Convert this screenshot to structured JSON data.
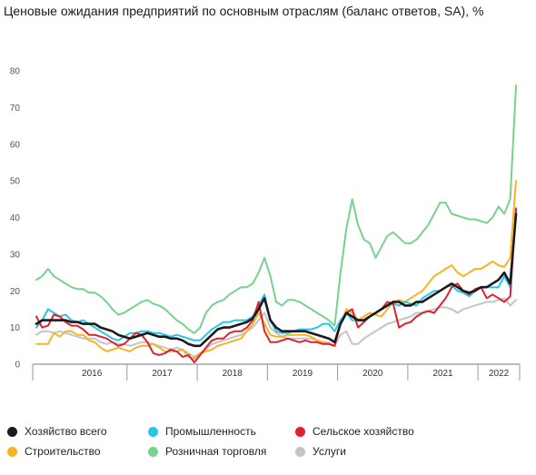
{
  "title": "Ценовые ожидания предприятий по основным отраслям (баланс ответов, SA), %",
  "chart_data": {
    "type": "line",
    "title": "Ценовые ожидания предприятий по основным отраслям (баланс ответов, SA), %",
    "ylim": [
      0,
      80
    ],
    "yticks": [
      0,
      10,
      20,
      30,
      40,
      50,
      60,
      70,
      80
    ],
    "x_start": "2015-09",
    "x_labels": [
      "2016",
      "2017",
      "2018",
      "2019",
      "2020",
      "2021",
      "2022"
    ],
    "x_label_months": [
      "2016-01",
      "2017-01",
      "2018-01",
      "2019-01",
      "2020-01",
      "2021-01",
      "2022-01"
    ],
    "grid": false,
    "legend_position": "bottom",
    "series": [
      {
        "name": "Хозяйство всего",
        "color": "#1b1b1b",
        "values": [
          11.0,
          12.0,
          12.0,
          12.0,
          12.0,
          12.0,
          11.5,
          11.5,
          11.0,
          11.0,
          11.0,
          10.0,
          9.5,
          9.0,
          8.0,
          7.5,
          7.0,
          7.5,
          8.0,
          8.5,
          8.0,
          7.5,
          7.5,
          7.0,
          7.0,
          6.5,
          5.5,
          5.0,
          5.0,
          6.5,
          8.0,
          9.5,
          10.0,
          10.0,
          10.5,
          11.0,
          11.5,
          12.5,
          15.0,
          18.0,
          12.0,
          10.0,
          9.0,
          9.0,
          9.0,
          9.0,
          9.0,
          8.5,
          8.0,
          7.5,
          7.0,
          6.0,
          11.0,
          14.0,
          13.0,
          12.0,
          12.0,
          13.0,
          14.0,
          15.0,
          16.0,
          17.0,
          17.0,
          16.0,
          16.0,
          17.0,
          17.0,
          18.0,
          19.0,
          20.0,
          21.0,
          22.0,
          21.0,
          20.0,
          19.5,
          20.0,
          21.0,
          21.0,
          22.0,
          23.0,
          25.0,
          22.0,
          41.0
        ]
      },
      {
        "name": "Промышленность",
        "color": "#29c4e8",
        "values": [
          10.0,
          12.0,
          15.0,
          14.0,
          13.0,
          13.5,
          12.0,
          11.5,
          12.0,
          11.0,
          10.0,
          9.0,
          8.0,
          7.0,
          6.5,
          7.5,
          8.5,
          8.5,
          9.0,
          9.0,
          8.5,
          8.5,
          8.0,
          7.5,
          8.0,
          7.5,
          7.0,
          6.5,
          6.5,
          8.0,
          9.5,
          10.5,
          11.5,
          11.5,
          12.0,
          12.0,
          12.0,
          13.0,
          16.0,
          19.0,
          12.0,
          9.0,
          8.5,
          8.5,
          9.0,
          9.5,
          9.5,
          9.5,
          10.0,
          11.0,
          11.0,
          9.0,
          12.0,
          14.0,
          12.0,
          12.0,
          12.0,
          13.0,
          14.0,
          15.0,
          16.0,
          16.5,
          16.0,
          17.0,
          16.5,
          16.0,
          18.0,
          19.0,
          20.0,
          20.0,
          21.0,
          21.5,
          20.0,
          19.5,
          18.5,
          20.0,
          21.0,
          21.0,
          21.0,
          21.0,
          24.0,
          21.0,
          42.0
        ]
      },
      {
        "name": "Сельское хозяйство",
        "color": "#e0202f",
        "values": [
          13.0,
          10.0,
          10.5,
          13.5,
          13.0,
          11.5,
          10.5,
          10.5,
          9.5,
          8.0,
          8.0,
          7.5,
          7.0,
          6.0,
          5.0,
          5.5,
          7.0,
          8.5,
          8.0,
          6.0,
          3.0,
          2.5,
          3.0,
          4.0,
          3.5,
          2.0,
          2.5,
          0.5,
          2.5,
          4.5,
          6.5,
          7.0,
          7.0,
          8.5,
          9.0,
          9.0,
          10.0,
          12.0,
          17.0,
          9.0,
          6.0,
          6.0,
          6.5,
          7.0,
          6.5,
          6.0,
          6.5,
          6.0,
          6.0,
          5.5,
          5.5,
          5.0,
          11.0,
          14.0,
          15.0,
          10.0,
          11.5,
          13.0,
          14.0,
          15.0,
          17.0,
          16.5,
          10.0,
          11.0,
          11.5,
          13.0,
          14.0,
          14.5,
          14.0,
          16.0,
          18.0,
          21.0,
          22.0,
          20.0,
          19.0,
          20.5,
          21.0,
          18.0,
          19.0,
          18.0,
          17.0,
          18.5,
          42.5
        ]
      },
      {
        "name": "Строительство",
        "color": "#f6b424",
        "values": [
          5.5,
          5.5,
          5.5,
          8.5,
          7.5,
          9.0,
          9.0,
          8.0,
          8.0,
          6.5,
          6.0,
          4.5,
          3.5,
          4.0,
          4.5,
          4.0,
          3.5,
          4.5,
          5.0,
          5.0,
          5.5,
          4.5,
          3.5,
          3.5,
          3.5,
          4.0,
          2.0,
          1.5,
          3.0,
          3.5,
          4.0,
          5.0,
          5.5,
          6.0,
          6.5,
          7.0,
          9.0,
          11.0,
          14.0,
          11.0,
          8.0,
          7.5,
          7.5,
          8.0,
          8.0,
          8.0,
          8.0,
          7.5,
          6.5,
          6.0,
          5.5,
          5.0,
          11.0,
          15.0,
          14.0,
          12.0,
          13.0,
          14.0,
          13.5,
          13.0,
          15.0,
          17.0,
          17.5,
          17.0,
          18.0,
          19.0,
          20.0,
          22.0,
          24.0,
          25.0,
          26.0,
          27.0,
          25.0,
          24.0,
          25.0,
          26.0,
          26.0,
          27.0,
          28.0,
          27.0,
          26.5,
          29.0,
          50.0
        ]
      },
      {
        "name": "Розничная торговля",
        "color": "#78d18e",
        "values": [
          23.0,
          24.0,
          26.0,
          24.0,
          23.0,
          22.0,
          21.0,
          20.5,
          20.5,
          19.5,
          19.5,
          18.5,
          17.0,
          15.0,
          13.5,
          14.0,
          15.0,
          16.0,
          17.0,
          17.5,
          16.5,
          16.0,
          15.0,
          13.5,
          12.0,
          11.0,
          9.5,
          8.5,
          10.0,
          14.0,
          16.0,
          17.0,
          17.5,
          19.0,
          20.0,
          21.0,
          21.0,
          22.0,
          25.0,
          29.0,
          24.0,
          17.0,
          16.0,
          17.5,
          17.5,
          17.0,
          16.0,
          15.0,
          14.0,
          13.0,
          12.0,
          10.5,
          25.0,
          37.0,
          45.0,
          38.0,
          34.0,
          33.0,
          29.0,
          32.0,
          35.0,
          36.0,
          34.5,
          33.0,
          33.0,
          34.0,
          36.0,
          38.0,
          41.0,
          44.0,
          44.0,
          41.0,
          40.5,
          40.0,
          39.5,
          39.5,
          39.0,
          38.5,
          40.0,
          43.0,
          41.0,
          45.0,
          76.0
        ]
      },
      {
        "name": "Услуги",
        "color": "#c2c4cc",
        "values": [
          8.0,
          9.0,
          9.0,
          8.5,
          9.0,
          8.5,
          8.0,
          7.5,
          7.0,
          7.0,
          7.0,
          6.0,
          5.5,
          6.0,
          5.5,
          5.5,
          5.0,
          5.5,
          6.0,
          6.0,
          5.5,
          5.0,
          4.5,
          4.0,
          4.5,
          4.0,
          3.0,
          2.0,
          3.0,
          4.0,
          5.5,
          6.0,
          6.5,
          7.0,
          7.5,
          8.0,
          9.0,
          10.0,
          12.0,
          14.0,
          10.0,
          8.5,
          7.5,
          7.0,
          7.0,
          7.0,
          7.0,
          7.0,
          6.5,
          6.0,
          6.0,
          5.0,
          8.0,
          9.0,
          5.5,
          5.5,
          7.0,
          8.0,
          9.0,
          10.0,
          11.0,
          11.5,
          12.0,
          12.5,
          13.0,
          14.0,
          14.0,
          14.5,
          15.0,
          15.5,
          15.5,
          15.0,
          14.0,
          15.0,
          15.5,
          16.0,
          16.5,
          17.0,
          17.0,
          17.5,
          18.0,
          16.0,
          17.5
        ]
      }
    ]
  }
}
